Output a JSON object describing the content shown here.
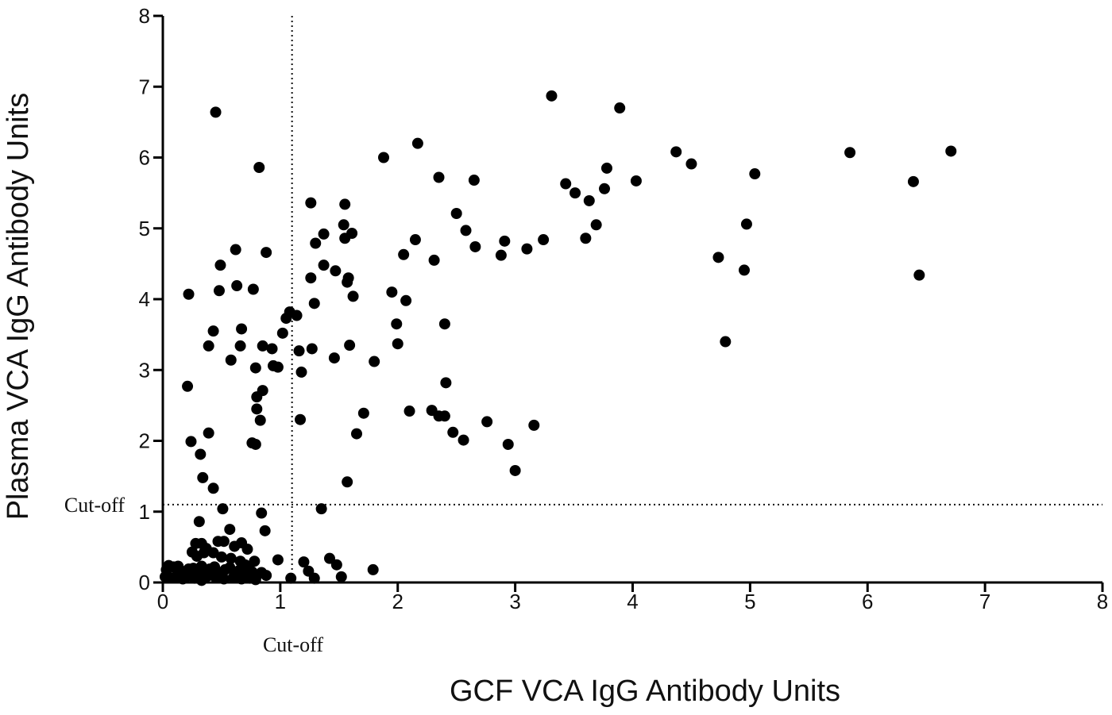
{
  "chart_data": {
    "type": "scatter",
    "title": "",
    "xlabel": "GCF VCA IgG Antibody Units",
    "ylabel": "Plasma VCA IgG Antibody Units",
    "xlim": [
      0,
      8
    ],
    "ylim": [
      0,
      8
    ],
    "xticks": [
      "0",
      "1",
      "2",
      "3",
      "4",
      "5",
      "6",
      "7",
      "8"
    ],
    "yticks": [
      "0",
      "1",
      "2",
      "3",
      "4",
      "5",
      "6",
      "7",
      "8"
    ],
    "grid": false,
    "cutoffs": {
      "x": 1.1,
      "y": 1.1,
      "x_label": "Cut-off",
      "y_label": "Cut-off",
      "line_style": "dotted"
    },
    "marker_color": "#000000",
    "points": [
      [
        0.45,
        6.64
      ],
      [
        0.82,
        5.86
      ],
      [
        0.22,
        4.07
      ],
      [
        0.49,
        4.48
      ],
      [
        0.62,
        4.7
      ],
      [
        0.88,
        4.66
      ],
      [
        0.48,
        4.12
      ],
      [
        0.63,
        4.19
      ],
      [
        0.77,
        4.14
      ],
      [
        0.43,
        3.55
      ],
      [
        0.39,
        3.34
      ],
      [
        0.67,
        3.58
      ],
      [
        0.66,
        3.34
      ],
      [
        0.58,
        3.14
      ],
      [
        0.79,
        3.03
      ],
      [
        0.85,
        3.34
      ],
      [
        0.93,
        3.3
      ],
      [
        0.94,
        3.06
      ],
      [
        0.98,
        3.04
      ],
      [
        0.21,
        2.77
      ],
      [
        0.8,
        2.62
      ],
      [
        0.85,
        2.71
      ],
      [
        0.8,
        2.45
      ],
      [
        0.83,
        2.29
      ],
      [
        0.76,
        1.97
      ],
      [
        0.79,
        1.95
      ],
      [
        0.39,
        2.11
      ],
      [
        0.24,
        1.99
      ],
      [
        0.32,
        1.81
      ],
      [
        0.34,
        1.48
      ],
      [
        0.43,
        1.33
      ],
      [
        0.51,
        1.04
      ],
      [
        0.57,
        0.75
      ],
      [
        0.84,
        0.98
      ],
      [
        0.87,
        0.73
      ],
      [
        0.31,
        0.86
      ],
      [
        0.28,
        0.55
      ],
      [
        0.33,
        0.55
      ],
      [
        0.37,
        0.48
      ],
      [
        0.47,
        0.58
      ],
      [
        0.52,
        0.58
      ],
      [
        0.61,
        0.51
      ],
      [
        0.67,
        0.56
      ],
      [
        0.72,
        0.47
      ],
      [
        0.25,
        0.43
      ],
      [
        0.29,
        0.37
      ],
      [
        0.35,
        0.42
      ],
      [
        0.43,
        0.42
      ],
      [
        0.5,
        0.36
      ],
      [
        0.58,
        0.34
      ],
      [
        0.66,
        0.3
      ],
      [
        0.7,
        0.25
      ],
      [
        0.78,
        0.3
      ],
      [
        0.03,
        0.18
      ],
      [
        0.05,
        0.24
      ],
      [
        0.09,
        0.22
      ],
      [
        0.13,
        0.23
      ],
      [
        0.15,
        0.17
      ],
      [
        0.19,
        0.13
      ],
      [
        0.22,
        0.19
      ],
      [
        0.26,
        0.2
      ],
      [
        0.3,
        0.16
      ],
      [
        0.33,
        0.23
      ],
      [
        0.36,
        0.15
      ],
      [
        0.4,
        0.19
      ],
      [
        0.44,
        0.22
      ],
      [
        0.48,
        0.14
      ],
      [
        0.53,
        0.18
      ],
      [
        0.57,
        0.21
      ],
      [
        0.61,
        0.14
      ],
      [
        0.65,
        0.17
      ],
      [
        0.69,
        0.12
      ],
      [
        0.73,
        0.2
      ],
      [
        0.76,
        0.15
      ],
      [
        0.8,
        0.1
      ],
      [
        0.84,
        0.14
      ],
      [
        0.88,
        0.1
      ],
      [
        0.02,
        0.08
      ],
      [
        0.06,
        0.07
      ],
      [
        0.11,
        0.08
      ],
      [
        0.17,
        0.05
      ],
      [
        0.21,
        0.09
      ],
      [
        0.27,
        0.06
      ],
      [
        0.33,
        0.03
      ],
      [
        0.38,
        0.09
      ],
      [
        0.45,
        0.07
      ],
      [
        0.52,
        0.05
      ],
      [
        0.6,
        0.07
      ],
      [
        0.67,
        0.05
      ],
      [
        0.74,
        0.06
      ],
      [
        0.79,
        0.04
      ],
      [
        1.02,
        3.52
      ],
      [
        1.05,
        3.73
      ],
      [
        1.08,
        3.82
      ],
      [
        1.14,
        3.77
      ],
      [
        1.16,
        3.27
      ],
      [
        1.18,
        2.97
      ],
      [
        1.17,
        2.3
      ],
      [
        1.27,
        3.3
      ],
      [
        1.26,
        4.3
      ],
      [
        1.26,
        5.36
      ],
      [
        1.3,
        4.79
      ],
      [
        1.29,
        3.94
      ],
      [
        1.37,
        4.92
      ],
      [
        1.37,
        4.48
      ],
      [
        1.47,
        4.4
      ],
      [
        1.46,
        3.17
      ],
      [
        1.54,
        5.05
      ],
      [
        1.55,
        5.34
      ],
      [
        1.55,
        4.86
      ],
      [
        1.57,
        4.24
      ],
      [
        1.58,
        4.3
      ],
      [
        1.61,
        4.93
      ],
      [
        1.62,
        4.04
      ],
      [
        1.59,
        3.35
      ],
      [
        1.57,
        1.42
      ],
      [
        1.65,
        2.1
      ],
      [
        1.71,
        2.39
      ],
      [
        1.8,
        3.12
      ],
      [
        1.35,
        1.04
      ],
      [
        0.98,
        0.32
      ],
      [
        1.09,
        0.06
      ],
      [
        1.2,
        0.29
      ],
      [
        1.24,
        0.16
      ],
      [
        1.29,
        0.06
      ],
      [
        1.42,
        0.34
      ],
      [
        1.48,
        0.25
      ],
      [
        1.52,
        0.08
      ],
      [
        1.79,
        0.18
      ],
      [
        1.88,
        6.0
      ],
      [
        1.95,
        4.1
      ],
      [
        1.99,
        3.65
      ],
      [
        2.0,
        3.37
      ],
      [
        2.05,
        4.63
      ],
      [
        2.07,
        3.98
      ],
      [
        2.1,
        2.42
      ],
      [
        2.15,
        4.84
      ],
      [
        2.17,
        6.2
      ],
      [
        2.29,
        2.43
      ],
      [
        2.31,
        4.55
      ],
      [
        2.35,
        5.72
      ],
      [
        2.35,
        2.35
      ],
      [
        2.4,
        3.65
      ],
      [
        2.41,
        2.82
      ],
      [
        2.4,
        2.35
      ],
      [
        2.47,
        2.12
      ],
      [
        2.5,
        5.21
      ],
      [
        2.56,
        2.01
      ],
      [
        2.58,
        4.97
      ],
      [
        2.65,
        5.68
      ],
      [
        2.66,
        4.74
      ],
      [
        2.76,
        2.27
      ],
      [
        2.88,
        4.62
      ],
      [
        2.91,
        4.82
      ],
      [
        2.94,
        1.95
      ],
      [
        3.0,
        1.58
      ],
      [
        3.1,
        4.71
      ],
      [
        3.16,
        2.22
      ],
      [
        3.24,
        4.84
      ],
      [
        3.31,
        6.87
      ],
      [
        3.43,
        5.63
      ],
      [
        3.51,
        5.5
      ],
      [
        3.6,
        4.86
      ],
      [
        3.63,
        5.39
      ],
      [
        3.69,
        5.05
      ],
      [
        3.76,
        5.56
      ],
      [
        3.78,
        5.85
      ],
      [
        3.89,
        6.7
      ],
      [
        4.03,
        5.67
      ],
      [
        4.37,
        6.08
      ],
      [
        4.5,
        5.91
      ],
      [
        4.73,
        4.59
      ],
      [
        4.79,
        3.4
      ],
      [
        4.95,
        4.41
      ],
      [
        4.97,
        5.06
      ],
      [
        5.04,
        5.77
      ],
      [
        5.85,
        6.07
      ],
      [
        6.39,
        5.66
      ],
      [
        6.44,
        4.34
      ],
      [
        6.71,
        6.09
      ]
    ]
  }
}
